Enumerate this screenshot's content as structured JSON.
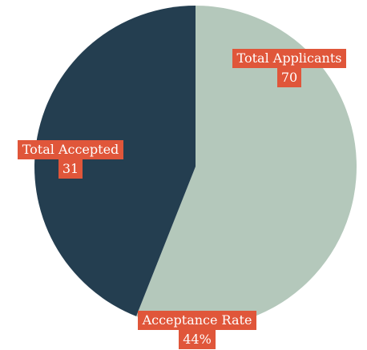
{
  "chart_data": {
    "type": "pie",
    "values": [
      56,
      44
    ],
    "colors": [
      "#b4c8bb",
      "#243e50"
    ],
    "annotations": [
      {
        "text": "Total Applicants",
        "label": "70"
      },
      {
        "text": "Total Accepted",
        "label": "31"
      },
      {
        "text": "Acceptance Rate",
        "label": "44%"
      }
    ]
  }
}
